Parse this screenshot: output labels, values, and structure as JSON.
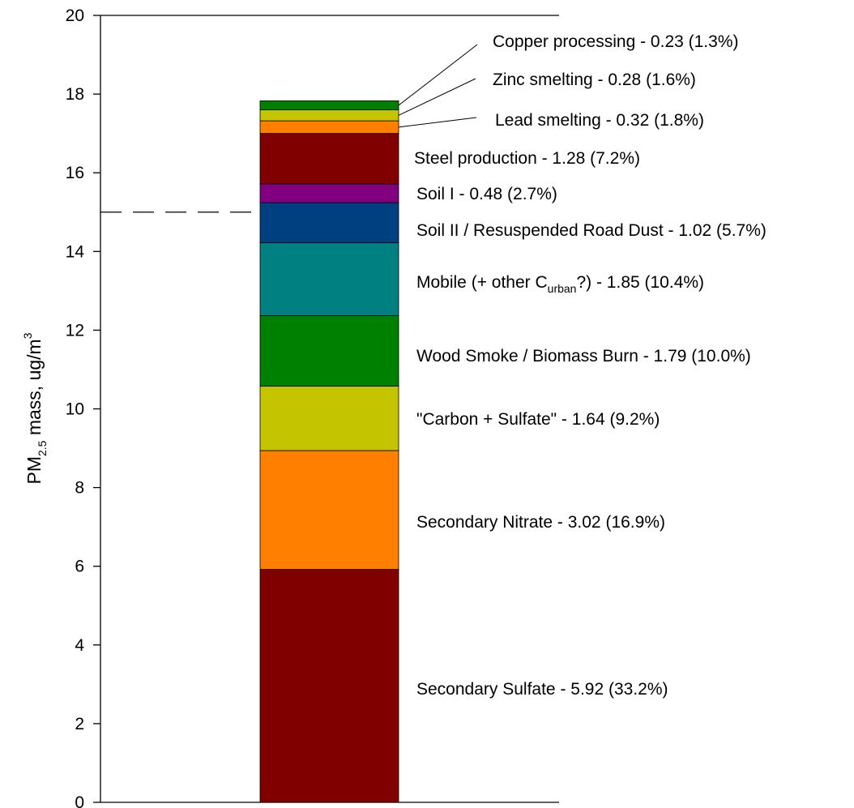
{
  "chart_data": {
    "type": "bar",
    "stacked": true,
    "ylabel": {
      "main": "PM",
      "sub": "2.5",
      "rest": " mass, ug/m",
      "sup": "3"
    },
    "ylim": [
      0,
      20
    ],
    "yticks": [
      0,
      2,
      4,
      6,
      8,
      10,
      12,
      14,
      16,
      18,
      20
    ],
    "reference_line": {
      "y": 15,
      "style": "dashed"
    },
    "segments": [
      {
        "name": "Secondary Sulfate",
        "value": 5.92,
        "percent": "33.2%",
        "color": "#800000",
        "label": "Secondary Sulfate - 5.92 (33.2%)"
      },
      {
        "name": "Secondary Nitrate",
        "value": 3.02,
        "percent": "16.9%",
        "color": "#ff8000",
        "label": "Secondary Nitrate - 3.02 (16.9%)"
      },
      {
        "name": "\"Carbon + Sulfate\"",
        "value": 1.64,
        "percent": "9.2%",
        "color": "#c4c400",
        "label": "\"Carbon + Sulfate\" - 1.64 (9.2%)"
      },
      {
        "name": "Wood Smoke / Biomass Burn",
        "value": 1.79,
        "percent": "10.0%",
        "color": "#008000",
        "label": "Wood Smoke / Biomass Burn - 1.79 (10.0%)"
      },
      {
        "name": "Mobile (+ other Curban?)",
        "value": 1.85,
        "percent": "10.4%",
        "color": "#008080",
        "label_pre": "Mobile (+ other C",
        "label_sub": "urban",
        "label_post": "?) - 1.85 (10.4%)"
      },
      {
        "name": "Soil II / Resuspended Road Dust",
        "value": 1.02,
        "percent": "5.7%",
        "color": "#004080",
        "label": "Soil II / Resuspended Road Dust - 1.02 (5.7%)"
      },
      {
        "name": "Soil I",
        "value": 0.48,
        "percent": "2.7%",
        "color": "#800080",
        "label": "Soil I - 0.48 (2.7%)"
      },
      {
        "name": "Steel production",
        "value": 1.28,
        "percent": "7.2%",
        "color": "#800000",
        "label": "Steel production - 1.28 (7.2%)"
      },
      {
        "name": "Lead smelting",
        "value": 0.32,
        "percent": "1.8%",
        "color": "#ff8000",
        "label": "Lead smelting - 0.32 (1.8%)"
      },
      {
        "name": "Zinc smelting",
        "value": 0.28,
        "percent": "1.6%",
        "color": "#c4c400",
        "label": "Zinc smelting - 0.28 (1.6%)"
      },
      {
        "name": "Copper processing",
        "value": 0.23,
        "percent": "1.3%",
        "color": "#008000",
        "label": "Copper processing - 0.23 (1.3%)"
      }
    ]
  }
}
